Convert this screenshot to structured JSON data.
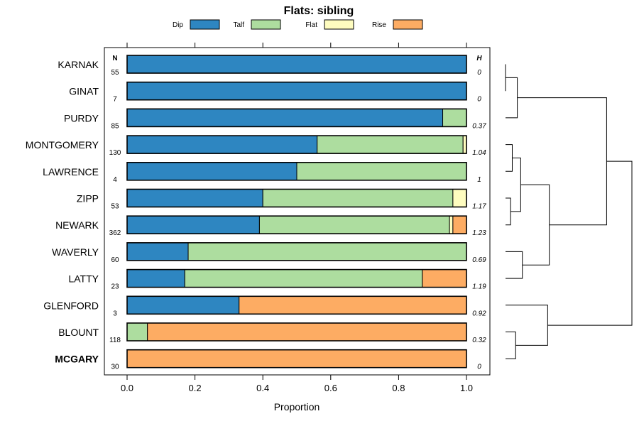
{
  "chart_data": {
    "type": "bar",
    "orientation": "horizontal",
    "stacked": true,
    "title": "Flats: sibling",
    "xlabel": "Proportion",
    "ylabel": "",
    "xlim": [
      0,
      1
    ],
    "x_ticks": [
      "0.0",
      "0.2",
      "0.4",
      "0.6",
      "0.8",
      "1.0"
    ],
    "x_tick_values": [
      0,
      0.2,
      0.4,
      0.6,
      0.8,
      1.0
    ],
    "legend_position": "top",
    "n_header": "N",
    "h_header": "H",
    "categories": [
      "KARNAK",
      "GINAT",
      "PURDY",
      "MONTGOMERY",
      "LAWRENCE",
      "ZIPP",
      "NEWARK",
      "WAVERLY",
      "LATTY",
      "GLENFORD",
      "BLOUNT",
      "MCGARY"
    ],
    "bold_categories": [
      "MCGARY"
    ],
    "n": [
      "55",
      "7",
      "85",
      "130",
      "4",
      "53",
      "362",
      "60",
      "23",
      "3",
      "118",
      "30"
    ],
    "h": [
      "0",
      "0",
      "0.37",
      "1.04",
      "1",
      "1.17",
      "1.23",
      "0.69",
      "1.19",
      "0.92",
      "0.32",
      "0"
    ],
    "series": [
      {
        "name": "Dip",
        "color": "#2e86c1",
        "values": [
          1.0,
          1.0,
          0.93,
          0.56,
          0.5,
          0.4,
          0.39,
          0.18,
          0.17,
          0.33,
          0.0,
          0.0
        ]
      },
      {
        "name": "Talf",
        "color": "#addd9f",
        "values": [
          0.0,
          0.0,
          0.07,
          0.43,
          0.5,
          0.56,
          0.56,
          0.82,
          0.7,
          0.0,
          0.06,
          0.0
        ]
      },
      {
        "name": "Flat",
        "color": "#fefcbf",
        "values": [
          0.0,
          0.0,
          0.0,
          0.01,
          0.0,
          0.04,
          0.01,
          0.0,
          0.0,
          0.0,
          0.0,
          0.0
        ]
      },
      {
        "name": "Rise",
        "color": "#fdac63",
        "values": [
          0.0,
          0.0,
          0.0,
          0.0,
          0.0,
          0.0,
          0.04,
          0.0,
          0.13,
          0.67,
          0.94,
          1.0
        ]
      }
    ],
    "dendrogram": {
      "leaves": [
        "KARNAK",
        "GINAT",
        "PURDY",
        "MONTGOMERY",
        "LAWRENCE",
        "ZIPP",
        "NEWARK",
        "WAVERLY",
        "LATTY",
        "GLENFORD",
        "BLOUNT",
        "MCGARY"
      ],
      "merges": [
        {
          "a": "L0",
          "b": "L1",
          "height": 0.0
        },
        {
          "a": "M0",
          "b": "L2",
          "height": 0.07
        },
        {
          "a": "L3",
          "b": "L4",
          "height": 0.04
        },
        {
          "a": "L5",
          "b": "L6",
          "height": 0.03
        },
        {
          "a": "M2",
          "b": "M3",
          "height": 0.09
        },
        {
          "a": "L7",
          "b": "L8",
          "height": 0.1
        },
        {
          "a": "M4",
          "b": "M5",
          "height": 0.26
        },
        {
          "a": "M1",
          "b": "M6",
          "height": 0.6
        },
        {
          "a": "L10",
          "b": "L11",
          "height": 0.06
        },
        {
          "a": "L9",
          "b": "M8",
          "height": 0.25
        },
        {
          "a": "M7",
          "b": "M9",
          "height": 0.75
        }
      ]
    }
  }
}
